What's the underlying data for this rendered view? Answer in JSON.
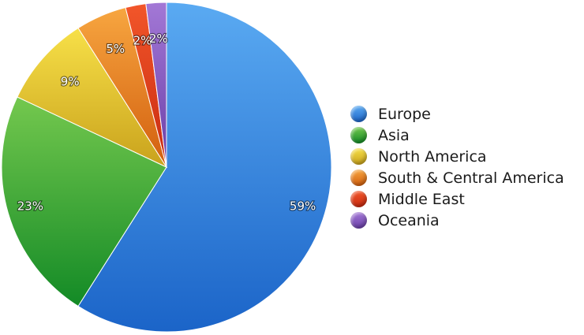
{
  "chart_data": {
    "type": "pie",
    "categories": [
      "Europe",
      "Asia",
      "North America",
      "South & Central America",
      "Middle East",
      "Oceania"
    ],
    "values": [
      59,
      23,
      9,
      5,
      2,
      2
    ],
    "value_labels": [
      "59%",
      "23%",
      "9%",
      "5%",
      "2%",
      "2%"
    ],
    "colors": [
      [
        "#5aaaf2",
        "#1b64c8"
      ],
      [
        "#74c84e",
        "#138a26"
      ],
      [
        "#f7e048",
        "#c9a21c"
      ],
      [
        "#f7a640",
        "#d25e0e"
      ],
      [
        "#f2562a",
        "#c82a10"
      ],
      [
        "#a378d6",
        "#6a3fa8"
      ]
    ],
    "legend_position": "right"
  }
}
